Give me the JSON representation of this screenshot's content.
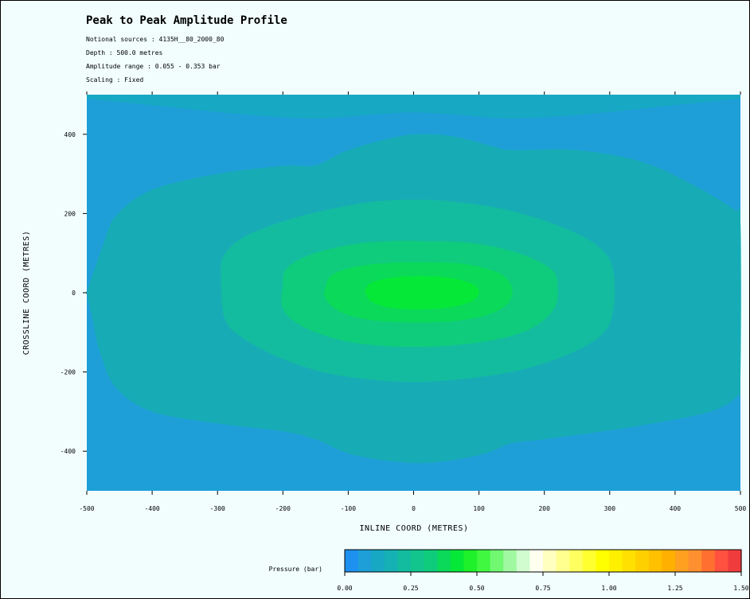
{
  "header": {
    "title": "Peak to Peak Amplitude Profile",
    "sources": "Notional sources : 4135H__80_2000_80",
    "depth": "Depth : 500.0 metres",
    "amp_range": "Amplitude range : 0.055 - 0.353 bar",
    "scaling": "Scaling : Fixed"
  },
  "chart_data": {
    "type": "contour",
    "title": "Peak to Peak Amplitude Profile",
    "xlabel": "INLINE COORD (METRES)",
    "ylabel": "CROSSLINE COORD (METRES)",
    "xlim": [
      -500,
      500
    ],
    "ylim": [
      -500,
      500
    ],
    "x_ticks": [
      -500,
      -400,
      -300,
      -200,
      -100,
      0,
      100,
      200,
      300,
      400,
      500
    ],
    "y_ticks": [
      -400,
      -200,
      0,
      200,
      400
    ],
    "x_tick_labels": [
      "-500",
      "-400",
      "-300",
      "-200",
      "-100",
      "0",
      "100",
      "200",
      "300",
      "400",
      "500"
    ],
    "y_tick_labels": [
      "-400",
      "-200",
      "0",
      "200",
      "400"
    ],
    "background_color": "#1e9fd8",
    "contours": [
      {
        "color": "#17a8c3",
        "points": [
          [
            -500,
            490
          ],
          [
            -380,
            470
          ],
          [
            -260,
            450
          ],
          [
            -150,
            440
          ],
          [
            -60,
            450
          ],
          [
            0,
            455
          ],
          [
            60,
            450
          ],
          [
            150,
            440
          ],
          [
            260,
            450
          ],
          [
            380,
            470
          ],
          [
            500,
            490
          ]
        ]
      },
      {
        "color": "#17acb5",
        "points": [
          [
            -500,
            0
          ],
          [
            -488,
            60
          ],
          [
            -475,
            120
          ],
          [
            -455,
            195
          ],
          [
            -400,
            260
          ],
          [
            -300,
            300
          ],
          [
            -200,
            320
          ],
          [
            -150,
            322
          ],
          [
            -100,
            360
          ],
          [
            -30,
            392
          ],
          [
            10,
            400
          ],
          [
            60,
            395
          ],
          [
            120,
            370
          ],
          [
            150,
            360
          ],
          [
            250,
            360
          ],
          [
            350,
            330
          ],
          [
            430,
            270
          ],
          [
            490,
            210
          ],
          [
            500,
            180
          ],
          [
            500,
            -220
          ],
          [
            495,
            -260
          ],
          [
            470,
            -290
          ],
          [
            430,
            -310
          ],
          [
            330,
            -340
          ],
          [
            200,
            -370
          ],
          [
            150,
            -380
          ],
          [
            100,
            -410
          ],
          [
            10,
            -430
          ],
          [
            -90,
            -410
          ],
          [
            -150,
            -370
          ],
          [
            -200,
            -350
          ],
          [
            -300,
            -330
          ],
          [
            -400,
            -300
          ],
          [
            -455,
            -240
          ],
          [
            -480,
            -150
          ],
          [
            -492,
            -60
          ],
          [
            -500,
            0
          ]
        ]
      },
      {
        "color": "#13bc9e",
        "points": [
          [
            -295,
            55
          ],
          [
            -290,
            95
          ],
          [
            -260,
            140
          ],
          [
            -200,
            180
          ],
          [
            -130,
            210
          ],
          [
            -60,
            230
          ],
          [
            0,
            235
          ],
          [
            60,
            230
          ],
          [
            140,
            210
          ],
          [
            220,
            170
          ],
          [
            280,
            120
          ],
          [
            305,
            60
          ],
          [
            305,
            -50
          ],
          [
            285,
            -110
          ],
          [
            230,
            -160
          ],
          [
            150,
            -200
          ],
          [
            60,
            -220
          ],
          [
            0,
            -225
          ],
          [
            -60,
            -220
          ],
          [
            -140,
            -200
          ],
          [
            -210,
            -160
          ],
          [
            -265,
            -110
          ],
          [
            -290,
            -60
          ],
          [
            -295,
            55
          ]
        ]
      },
      {
        "color": "#0fcc7c",
        "points": [
          [
            -200,
            20
          ],
          [
            -195,
            60
          ],
          [
            -160,
            95
          ],
          [
            -100,
            120
          ],
          [
            -40,
            130
          ],
          [
            20,
            130
          ],
          [
            90,
            125
          ],
          [
            160,
            100
          ],
          [
            210,
            60
          ],
          [
            220,
            20
          ],
          [
            215,
            -40
          ],
          [
            180,
            -90
          ],
          [
            120,
            -120
          ],
          [
            40,
            -135
          ],
          [
            -40,
            -135
          ],
          [
            -110,
            -120
          ],
          [
            -170,
            -85
          ],
          [
            -200,
            -40
          ],
          [
            -200,
            20
          ]
        ]
      },
      {
        "color": "#0ad95a",
        "points": [
          [
            -135,
            15
          ],
          [
            -125,
            45
          ],
          [
            -90,
            65
          ],
          [
            -40,
            75
          ],
          [
            20,
            77
          ],
          [
            80,
            72
          ],
          [
            130,
            50
          ],
          [
            150,
            15
          ],
          [
            145,
            -25
          ],
          [
            115,
            -55
          ],
          [
            60,
            -72
          ],
          [
            0,
            -75
          ],
          [
            -60,
            -70
          ],
          [
            -110,
            -50
          ],
          [
            -135,
            -15
          ],
          [
            -135,
            15
          ]
        ]
      },
      {
        "color": "#06e838",
        "points": [
          [
            -75,
            5
          ],
          [
            -65,
            25
          ],
          [
            -35,
            38
          ],
          [
            10,
            42
          ],
          [
            55,
            38
          ],
          [
            90,
            22
          ],
          [
            100,
            0
          ],
          [
            88,
            -22
          ],
          [
            55,
            -37
          ],
          [
            10,
            -42
          ],
          [
            -35,
            -38
          ],
          [
            -65,
            -22
          ],
          [
            -75,
            5
          ]
        ]
      }
    ],
    "colorbar": {
      "label": "Pressure (bar)",
      "min": 0.0,
      "max": 1.5,
      "tick_values": [
        0.0,
        0.25,
        0.5,
        0.75,
        1.0,
        1.25,
        1.5
      ],
      "tick_labels": [
        "0.00",
        "0.25",
        "0.50",
        "0.75",
        "1.00",
        "1.25",
        "1.50"
      ],
      "colors": [
        "#1e90f0",
        "#1e9fd8",
        "#17a8c3",
        "#15b1b5",
        "#13bc9e",
        "#11c58c",
        "#0fcc7c",
        "#0ad95a",
        "#06e838",
        "#1ef02a",
        "#40f840",
        "#70f870",
        "#a0f8a0",
        "#d0fcd0",
        "#fffff0",
        "#ffffc0",
        "#ffff90",
        "#ffff60",
        "#ffff30",
        "#ffff00",
        "#fff000",
        "#ffe000",
        "#ffd000",
        "#ffc000",
        "#ffb000",
        "#ffa020",
        "#ff9030",
        "#ff7030",
        "#ff5040",
        "#f03c3c"
      ]
    }
  }
}
